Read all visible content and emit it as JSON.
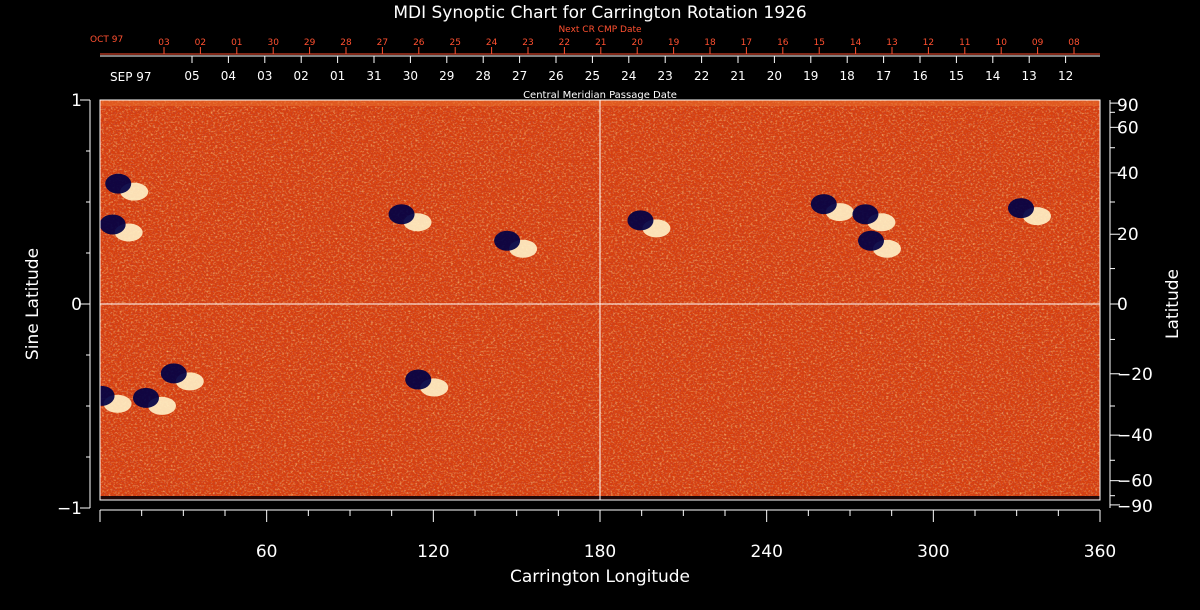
{
  "chart_data": {
    "type": "heatmap",
    "title": "MDI Synoptic Chart for Carrington Rotation 1926",
    "xlabel": "Carrington Longitude",
    "ylabel_left": "Sine Latitude",
    "ylabel_right": "Latitude",
    "xlim": [
      0,
      360
    ],
    "ylim": [
      -1,
      1
    ],
    "x_ticks": [
      60,
      120,
      180,
      240,
      300,
      360
    ],
    "y_ticks_left": [
      1,
      0,
      -1
    ],
    "y_tick_labels_left": [
      "1",
      "0",
      "−1"
    ],
    "y_ticks_right_latitude": [
      90,
      60,
      40,
      20,
      0,
      -20,
      -40,
      -60,
      -90
    ],
    "y_tick_labels_right": [
      "90",
      "60",
      "40",
      "20",
      "0",
      "−20",
      "−40",
      "−60",
      "−90"
    ],
    "grid_lines": {
      "longitude": [
        180
      ],
      "sine_latitude": [
        0
      ]
    },
    "top_axis_label": "Central Meridian Passage Date",
    "top_axis_month_label": "SEP 97",
    "top_axis_dates": [
      "05",
      "04",
      "03",
      "02",
      "01",
      "31",
      "30",
      "29",
      "28",
      "27",
      "26",
      "25",
      "24",
      "23",
      "22",
      "21",
      "20",
      "19",
      "18",
      "17",
      "16",
      "15",
      "14",
      "13",
      "12"
    ],
    "next_axis_label": "Next CR CMP Date",
    "next_axis_month_label": "OCT 97",
    "next_axis_dates": [
      "03",
      "02",
      "01",
      "30",
      "29",
      "28",
      "27",
      "26",
      "25",
      "24",
      "23",
      "22",
      "21",
      "20",
      "19",
      "18",
      "17",
      "16",
      "15",
      "14",
      "13",
      "12",
      "11",
      "10",
      "09",
      "08"
    ],
    "active_regions": [
      {
        "lon": 8,
        "sinlat": 0.58
      },
      {
        "lon": 6,
        "sinlat": 0.38
      },
      {
        "lon": 110,
        "sinlat": 0.43
      },
      {
        "lon": 148,
        "sinlat": 0.3
      },
      {
        "lon": 196,
        "sinlat": 0.4
      },
      {
        "lon": 262,
        "sinlat": 0.48
      },
      {
        "lon": 277,
        "sinlat": 0.43
      },
      {
        "lon": 279,
        "sinlat": 0.3
      },
      {
        "lon": 333,
        "sinlat": 0.46
      },
      {
        "lon": 28,
        "sinlat": -0.35
      },
      {
        "lon": 18,
        "sinlat": -0.47
      },
      {
        "lon": 2,
        "sinlat": -0.46
      },
      {
        "lon": 116,
        "sinlat": -0.38
      }
    ],
    "colors": {
      "background": "#000000",
      "field_base": "#d8400e",
      "positive_polarity": "#fff2c8",
      "negative_polarity": "#000044",
      "axis": "#ffffff",
      "next_cr_axis": "#ff5030"
    }
  }
}
